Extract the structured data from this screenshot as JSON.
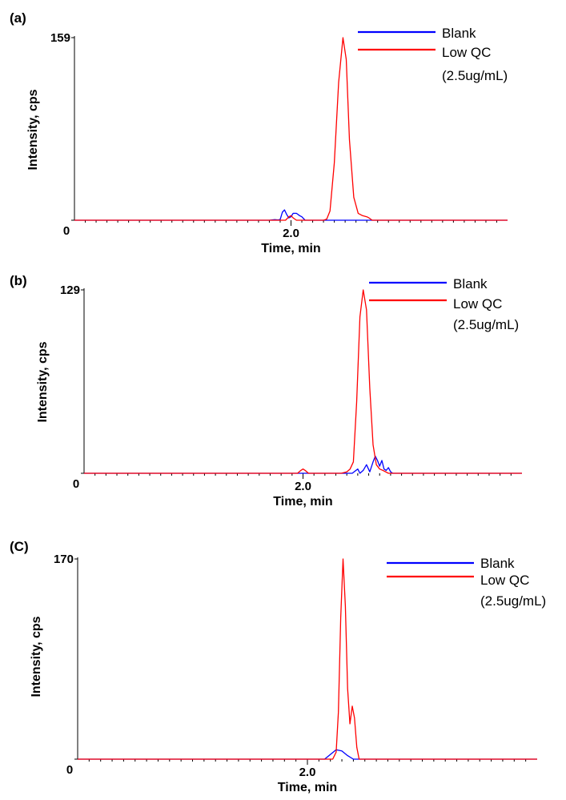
{
  "chart_data": [
    {
      "type": "line",
      "panel_label": "(a)",
      "xlabel": "Time, min",
      "ylabel": "Intensity, cps",
      "x_tick_label": "2.0",
      "xlim": [
        0,
        4
      ],
      "ylim": [
        0,
        159
      ],
      "y_tick_labels": [
        "0",
        "159"
      ],
      "legend": [
        "Blank",
        "Low QC",
        "(2.5ug/mL)"
      ],
      "legend_position": "top-right",
      "series": [
        {
          "name": "Blank",
          "color": "#0000ff",
          "x": [
            0,
            1.8,
            1.85,
            1.88,
            1.9,
            1.92,
            1.94,
            1.96,
            1.98,
            2.0,
            2.02,
            2.05,
            2.08,
            2.1,
            2.13,
            4.0
          ],
          "y": [
            0,
            0,
            0.5,
            0.3,
            0.6,
            7,
            9,
            5,
            2,
            3,
            6,
            6,
            4,
            3,
            0,
            0
          ]
        },
        {
          "name": "Low QC (2.5ug/mL)",
          "color": "#ff0000",
          "x": [
            0,
            1.95,
            1.98,
            2.0,
            2.02,
            2.05,
            2.07,
            2.1,
            2.15,
            2.2,
            2.3,
            2.33,
            2.36,
            2.4,
            2.44,
            2.48,
            2.51,
            2.54,
            2.58,
            2.62,
            2.66,
            2.7,
            2.72,
            2.75,
            4.0
          ],
          "y": [
            0,
            0,
            3,
            4,
            2,
            0,
            0,
            0,
            0,
            0,
            0,
            1,
            8,
            50,
            120,
            159,
            140,
            70,
            20,
            6,
            4,
            3,
            2,
            0,
            0
          ]
        }
      ]
    },
    {
      "type": "line",
      "panel_label": "(b)",
      "xlabel": "Time, min",
      "ylabel": "Intensity, cps",
      "x_tick_label": "2.0",
      "xlim": [
        0,
        4
      ],
      "ylim": [
        0,
        129
      ],
      "y_tick_labels": [
        "0",
        "129"
      ],
      "legend": [
        "Blank",
        "Low QC",
        "(2.5ug/mL)"
      ],
      "legend_position": "top-right",
      "series": [
        {
          "name": "Blank",
          "color": "#0000ff",
          "x": [
            0,
            2.45,
            2.5,
            2.52,
            2.55,
            2.58,
            2.61,
            2.64,
            2.66,
            2.68,
            2.7,
            2.72,
            2.74,
            2.76,
            2.78,
            2.8,
            2.82,
            4.0
          ],
          "y": [
            0,
            0,
            3,
            0,
            2,
            6,
            1,
            8,
            12,
            9,
            5,
            9,
            3,
            2,
            4,
            1,
            0,
            0
          ]
        },
        {
          "name": "Low QC (2.5ug/mL)",
          "color": "#ff0000",
          "x": [
            0,
            1.95,
            1.98,
            2.0,
            2.02,
            2.05,
            2.35,
            2.4,
            2.43,
            2.46,
            2.49,
            2.52,
            2.55,
            2.58,
            2.61,
            2.64,
            2.67,
            2.7,
            2.73,
            2.78,
            4.0
          ],
          "y": [
            0,
            0,
            2,
            3,
            2,
            0,
            0,
            1,
            3,
            8,
            50,
            110,
            129,
            115,
            60,
            20,
            6,
            3,
            2,
            0,
            0
          ]
        }
      ]
    },
    {
      "type": "line",
      "panel_label": "(C)",
      "xlabel": "Time, min",
      "ylabel": "Intensity, cps",
      "x_tick_label": "2.0",
      "xlim": [
        0,
        4
      ],
      "ylim": [
        0,
        170
      ],
      "y_tick_labels": [
        "0",
        "170"
      ],
      "legend": [
        "Blank",
        "Low QC",
        "(2.5ug/mL)"
      ],
      "legend_position": "top-right",
      "series": [
        {
          "name": "Blank",
          "color": "#0000ff",
          "x": [
            0,
            2.15,
            2.2,
            2.25,
            2.3,
            2.35,
            2.4,
            4.0
          ],
          "y": [
            0,
            0,
            4,
            8,
            7,
            3,
            0,
            0
          ]
        },
        {
          "name": "Low QC (2.5ug/mL)",
          "color": "#ff0000",
          "x": [
            0,
            2.22,
            2.25,
            2.27,
            2.29,
            2.31,
            2.33,
            2.35,
            2.37,
            2.39,
            2.41,
            2.43,
            2.45,
            2.47,
            4.0
          ],
          "y": [
            0,
            0,
            6,
            40,
            120,
            170,
            130,
            60,
            30,
            45,
            35,
            10,
            0,
            0,
            0
          ]
        }
      ]
    }
  ]
}
